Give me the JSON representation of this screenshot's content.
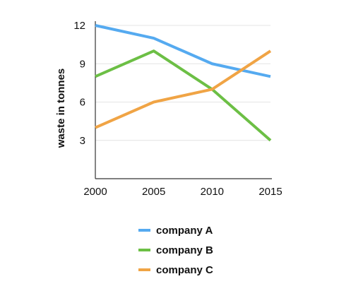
{
  "chart_data": {
    "type": "line",
    "title": "",
    "xlabel": "",
    "ylabel": "waste in tonnes",
    "x": [
      2000,
      2005,
      2010,
      2015
    ],
    "xlim": [
      2000,
      2015
    ],
    "ylim": [
      0,
      12
    ],
    "yticks": [
      3,
      6,
      9,
      12
    ],
    "grid": "horizontal",
    "legend_position": "bottom",
    "series": [
      {
        "name": "company A",
        "color": "#55aaf0",
        "values": [
          12,
          11,
          9,
          8
        ]
      },
      {
        "name": "company B",
        "color": "#6cbf45",
        "values": [
          8,
          10,
          7,
          3
        ]
      },
      {
        "name": "company C",
        "color": "#f0a445",
        "values": [
          4,
          6,
          7,
          10
        ]
      }
    ]
  }
}
